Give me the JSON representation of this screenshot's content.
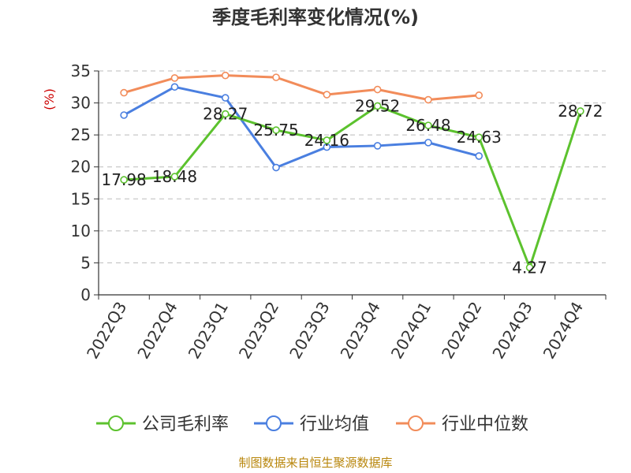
{
  "chart_data": {
    "type": "line",
    "title": "季度毛利率变化情况(%)",
    "ylabel": "(%)",
    "xlabel": "",
    "ylim": [
      0,
      35
    ],
    "yticks": [
      0,
      5,
      10,
      15,
      20,
      25,
      30,
      35
    ],
    "grid": true,
    "legend_position": "bottom",
    "categories": [
      "2022Q3",
      "2022Q4",
      "2023Q1",
      "2023Q2",
      "2023Q3",
      "2023Q4",
      "2024Q1",
      "2024Q2",
      "2024Q3",
      "2024Q4"
    ],
    "series": [
      {
        "name": "公司毛利率",
        "color": "#5cc22e",
        "values": [
          17.98,
          18.48,
          28.27,
          25.75,
          24.16,
          29.52,
          26.48,
          24.63,
          4.27,
          28.72
        ],
        "data_labels": [
          "17.98",
          "18.48",
          "28.27",
          "25.75",
          "24.16",
          "29.52",
          "26.48",
          "24.63",
          "4.27",
          "28.72"
        ]
      },
      {
        "name": "行业均值",
        "color": "#4a7fe0",
        "values": [
          28.1,
          32.5,
          30.8,
          19.9,
          23.1,
          23.3,
          23.8,
          21.7,
          null,
          null
        ]
      },
      {
        "name": "行业中位数",
        "color": "#f28c5a",
        "values": [
          31.6,
          33.9,
          34.3,
          34.0,
          31.3,
          32.1,
          30.5,
          31.2,
          null,
          null
        ]
      }
    ]
  },
  "source": "制图数据来自恒生聚源数据库"
}
